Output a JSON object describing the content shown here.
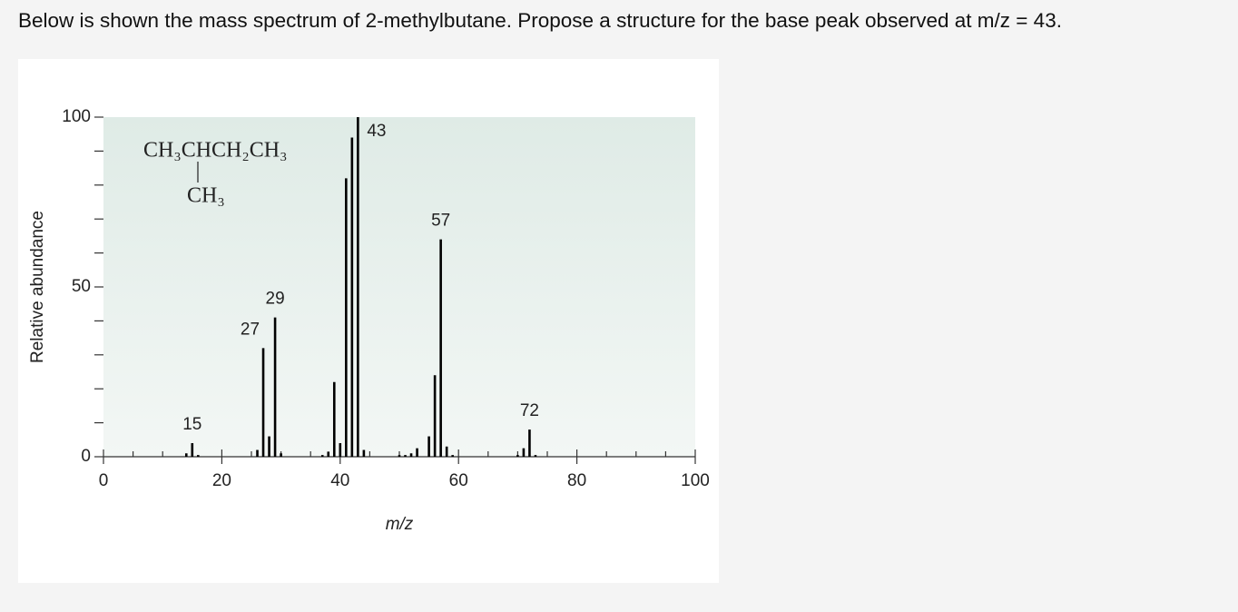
{
  "question": "Below is shown the mass spectrum of 2-methylbutane. Propose a structure for the base peak observed at m/z = 43.",
  "chart_data": {
    "type": "bar",
    "xlabel": "m/z",
    "ylabel": "Relative abundance",
    "formula": {
      "main": "CH₃CHCH₂CH₃",
      "branch": "CH₃"
    },
    "color": "#000000",
    "x": [
      14,
      15,
      16,
      26,
      27,
      28,
      29,
      30,
      37,
      38,
      39,
      40,
      41,
      42,
      43,
      44,
      50,
      51,
      52,
      53,
      55,
      56,
      57,
      58,
      59,
      70,
      71,
      72,
      73
    ],
    "values": [
      1,
      4,
      0.5,
      2,
      32,
      6,
      41,
      1,
      0.5,
      1.5,
      22,
      4,
      82,
      94,
      100,
      2,
      0.5,
      0.5,
      1,
      2.5,
      6,
      24,
      64,
      3,
      0.5,
      0.5,
      2.5,
      8,
      0.5
    ],
    "peak_labels": [
      null,
      "15",
      null,
      null,
      "27",
      null,
      "29",
      null,
      null,
      null,
      null,
      null,
      null,
      null,
      "43",
      null,
      null,
      null,
      null,
      null,
      null,
      null,
      "57",
      null,
      null,
      null,
      null,
      "72",
      null
    ],
    "xlim": [
      0,
      100
    ],
    "ylim": [
      0,
      100
    ],
    "xticks": [
      0,
      20,
      40,
      60,
      80,
      100
    ],
    "xminorticks": [
      5,
      10,
      15,
      25,
      30,
      35,
      45,
      50,
      55,
      65,
      70,
      75,
      85,
      90,
      95
    ],
    "yticks": [
      0,
      50,
      100
    ],
    "yminorticks": [
      10,
      20,
      30,
      40,
      60,
      70,
      80,
      90
    ]
  }
}
